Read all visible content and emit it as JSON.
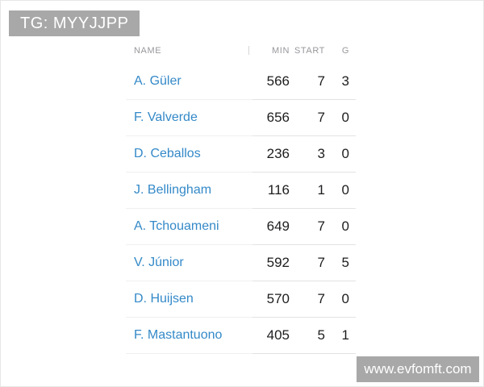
{
  "badge": {
    "label": "TG: MYYJJPP"
  },
  "watermark": {
    "label": "www.evfomft.com"
  },
  "table": {
    "headers": {
      "name": "NAME",
      "min": "MIN",
      "start": "START",
      "g": "G"
    },
    "rows": [
      {
        "name": "A. Güler",
        "min": "566",
        "start": "7",
        "g": "3"
      },
      {
        "name": "F. Valverde",
        "min": "656",
        "start": "7",
        "g": "0"
      },
      {
        "name": "D. Ceballos",
        "min": "236",
        "start": "3",
        "g": "0"
      },
      {
        "name": "J. Bellingham",
        "min": "116",
        "start": "1",
        "g": "0"
      },
      {
        "name": "A. Tchouameni",
        "min": "649",
        "start": "7",
        "g": "0"
      },
      {
        "name": "V. Júnior",
        "min": "592",
        "start": "7",
        "g": "5"
      },
      {
        "name": "D. Huijsen",
        "min": "570",
        "start": "7",
        "g": "0"
      },
      {
        "name": "F. Mastantuono",
        "min": "405",
        "start": "5",
        "g": "1"
      }
    ]
  },
  "colors": {
    "name_link": "#3489c8",
    "overlay_bg": "#a8a8a8",
    "overlay_text": "#ffffff",
    "stat_text": "#1d1d1f",
    "header_text": "#98989d",
    "divider_light": "#f0f0f0",
    "divider_dark": "#e2e2e2"
  }
}
